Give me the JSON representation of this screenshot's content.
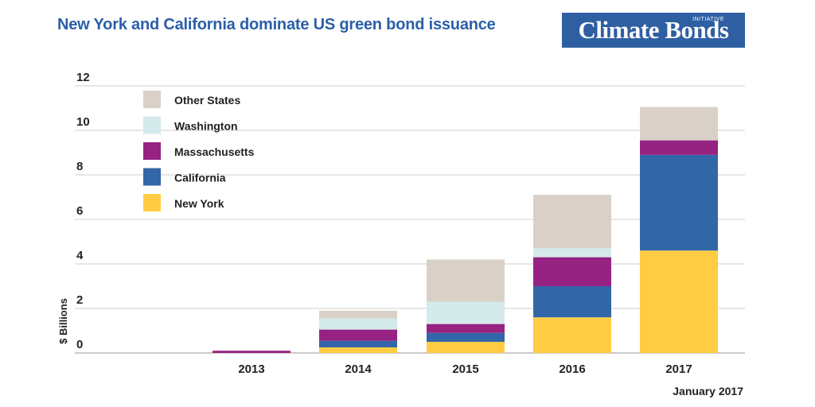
{
  "title": "New York and California dominate US green bond issuance",
  "logo": {
    "text": "Climate Bonds",
    "subtext": "INITIATIVE"
  },
  "footnote": "January 2017",
  "colors": {
    "title": "#2a5fa8",
    "logo_bg": "#2e5fa3",
    "grid": "#cfcfcf",
    "axis": "#999999",
    "text": "#222222"
  },
  "chart_data": {
    "type": "bar",
    "stacked": true,
    "categories": [
      "2013",
      "2014",
      "2015",
      "2016",
      "2017"
    ],
    "ylabel": "$ Billions",
    "xlabel": "",
    "ylim": [
      0,
      12
    ],
    "yticks": [
      0,
      2,
      4,
      6,
      8,
      10,
      12
    ],
    "grid": true,
    "legend_position": "top-left",
    "series": [
      {
        "name": "New York",
        "color": "#ffcc44",
        "values": [
          0,
          0.25,
          0.5,
          1.6,
          4.6
        ]
      },
      {
        "name": "California",
        "color": "#3366a8",
        "values": [
          0,
          0.3,
          0.4,
          1.4,
          4.3
        ]
      },
      {
        "name": "Massachusetts",
        "color": "#962281",
        "values": [
          0.1,
          0.5,
          0.4,
          1.3,
          0.65
        ]
      },
      {
        "name": "Washington",
        "color": "#d5eaea",
        "values": [
          0,
          0.5,
          1.0,
          0.4,
          0
        ]
      },
      {
        "name": "Other States",
        "color": "#d9d1c8",
        "values": [
          0,
          0.35,
          1.9,
          2.4,
          1.5
        ]
      }
    ]
  }
}
